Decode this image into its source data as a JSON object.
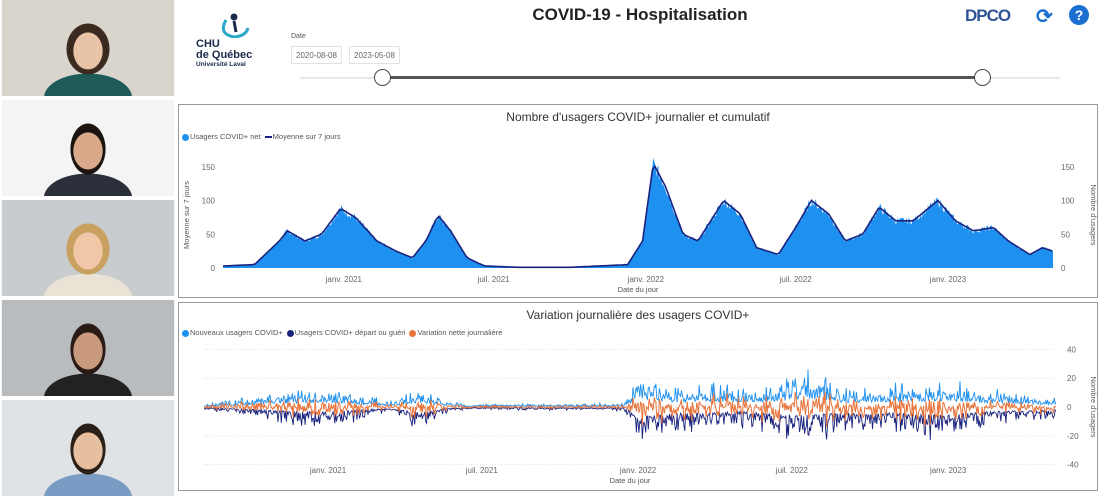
{
  "header": {
    "logo": {
      "line1": "CHU",
      "line2": "de Québec",
      "line3": "Université Laval"
    },
    "title": "COVID-19 - Hospitalisation",
    "brand": "DPCO",
    "refresh_icon": "refresh-icon",
    "help_icon": "help-icon",
    "help_label": "?"
  },
  "date_filter": {
    "label": "Date",
    "start": "2020-08-08",
    "end": "2023-05-08",
    "range_selected": [
      0,
      1
    ]
  },
  "participants": [
    {
      "name": "participant-1",
      "bg": "#d9d4cc"
    },
    {
      "name": "participant-2",
      "bg": "#f4f4f4"
    },
    {
      "name": "participant-3",
      "bg": "#c9ccce"
    },
    {
      "name": "participant-4",
      "bg": "#b9bcbf"
    },
    {
      "name": "participant-5",
      "bg": "#dfe3e6"
    }
  ],
  "chart_data": [
    {
      "type": "area",
      "title": "Nombre d'usagers COVID+ journalier et cumulatif",
      "xlabel": "Date du jour",
      "ylabel_left": "Moyenne sur 7 jours",
      "ylabel_right": "Nombre d'usagers",
      "legend": [
        "Usagers COVID+ net",
        "Moyenne sur 7 jours"
      ],
      "legend_position": "top-left",
      "colors": {
        "area": "#1e90f0",
        "line": "#1a237e"
      },
      "ylim": [
        0,
        160
      ],
      "yticks": [
        "0",
        "50",
        "100",
        "150"
      ],
      "xticks": [
        {
          "date": "2021-01-01",
          "label": "janv. 2021"
        },
        {
          "date": "2021-07-01",
          "label": "juil. 2021"
        },
        {
          "date": "2022-01-01",
          "label": "janv. 2022"
        },
        {
          "date": "2022-07-01",
          "label": "juil. 2022"
        },
        {
          "date": "2023-01-01",
          "label": "janv. 2023"
        }
      ],
      "xrange": [
        "2020-08-08",
        "2023-05-08"
      ],
      "x": [
        "2020-08-08",
        "2020-09-15",
        "2020-10-15",
        "2020-10-25",
        "2020-11-15",
        "2020-12-05",
        "2020-12-28",
        "2021-01-15",
        "2021-02-10",
        "2021-03-05",
        "2021-03-25",
        "2021-04-10",
        "2021-04-25",
        "2021-05-10",
        "2021-05-30",
        "2021-06-20",
        "2021-08-01",
        "2021-10-01",
        "2021-12-10",
        "2021-12-28",
        "2022-01-10",
        "2022-01-25",
        "2022-02-15",
        "2022-03-05",
        "2022-04-05",
        "2022-04-25",
        "2022-05-15",
        "2022-06-10",
        "2022-07-01",
        "2022-07-20",
        "2022-08-10",
        "2022-08-30",
        "2022-09-20",
        "2022-10-10",
        "2022-10-30",
        "2022-11-20",
        "2022-12-20",
        "2023-01-10",
        "2023-02-01",
        "2023-02-25",
        "2023-03-15",
        "2023-04-10",
        "2023-04-25",
        "2023-05-08"
      ],
      "series": [
        {
          "name": "Moyenne sur 7 jours",
          "values": [
            3,
            5,
            40,
            55,
            40,
            50,
            88,
            75,
            40,
            25,
            15,
            40,
            78,
            55,
            15,
            3,
            1,
            1,
            5,
            40,
            155,
            120,
            50,
            40,
            100,
            80,
            30,
            20,
            60,
            100,
            80,
            40,
            50,
            90,
            70,
            70,
            100,
            70,
            55,
            60,
            40,
            20,
            30,
            25
          ]
        }
      ]
    },
    {
      "type": "line",
      "title": "Variation journalière des usagers COVID+",
      "xlabel": "Date du jour",
      "ylabel": "Nombre d'usagers",
      "legend": [
        "Nouveaux usagers COVID+",
        "Usagers COVID+ départ ou guéri",
        "Variation nette journalière"
      ],
      "legend_position": "top-left",
      "colors": {
        "new": "#1e90f0",
        "depart": "#1a237e",
        "net": "#e8743b"
      },
      "ylim": [
        -40,
        40
      ],
      "yticks": [
        "40",
        "20",
        "0",
        "-20",
        "-40"
      ],
      "grid": true,
      "xticks": [
        {
          "date": "2021-01-01",
          "label": "janv. 2021"
        },
        {
          "date": "2021-07-01",
          "label": "juil. 2021"
        },
        {
          "date": "2022-01-01",
          "label": "janv. 2022"
        },
        {
          "date": "2022-07-01",
          "label": "juil. 2022"
        },
        {
          "date": "2023-01-01",
          "label": "janv. 2023"
        }
      ],
      "xrange": [
        "2020-08-08",
        "2023-05-08"
      ],
      "x": [
        "2020-08-08",
        "2020-10-01",
        "2020-11-01",
        "2021-01-01",
        "2021-02-15",
        "2021-03-15",
        "2021-04-20",
        "2021-05-20",
        "2021-06-15",
        "2021-12-15",
        "2022-01-05",
        "2022-02-15",
        "2022-03-15",
        "2022-05-01",
        "2022-06-15",
        "2022-07-15",
        "2022-09-01",
        "2022-11-01",
        "2023-01-01",
        "2023-02-15",
        "2023-05-08"
      ],
      "series": [
        {
          "name": "Nouveaux usagers COVID+",
          "values": [
            2,
            8,
            12,
            16,
            8,
            5,
            14,
            5,
            2,
            3,
            30,
            15,
            20,
            15,
            20,
            30,
            15,
            17,
            22,
            14,
            8
          ]
        },
        {
          "name": "Usagers COVID+ départ ou guéri",
          "values": [
            -2,
            -8,
            -12,
            -18,
            -8,
            -5,
            -17,
            -5,
            -2,
            -3,
            -33,
            -20,
            -22,
            -15,
            -25,
            -28,
            -20,
            -20,
            -28,
            -15,
            -10
          ]
        }
      ]
    }
  ]
}
